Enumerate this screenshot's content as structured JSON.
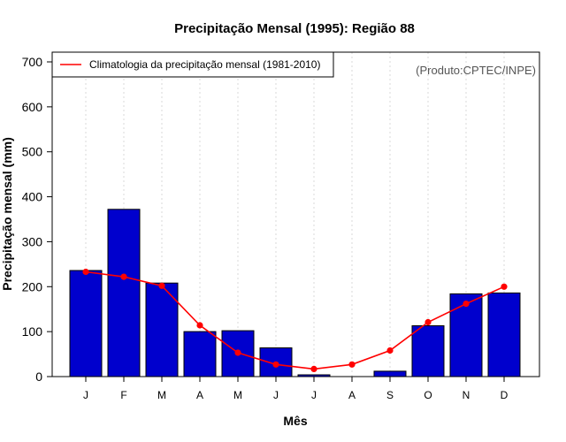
{
  "chart_data": {
    "type": "bar",
    "title": "Precipitação Mensal (1995): Região 88",
    "xlabel": "Mês",
    "ylabel": "Precipitação mensal (mm)",
    "ylim": [
      0,
      700
    ],
    "yticks": [
      0,
      100,
      200,
      300,
      400,
      500,
      600,
      700
    ],
    "grid": "vertical-dotted",
    "categories": [
      "J",
      "F",
      "M",
      "A",
      "M",
      "J",
      "J",
      "A",
      "S",
      "O",
      "N",
      "D"
    ],
    "series": [
      {
        "name": "Precipitação mensal (1995)",
        "type": "bar",
        "color": "#0000cd",
        "values": [
          236,
          372,
          208,
          100,
          102,
          64,
          4,
          0,
          12,
          113,
          184,
          186
        ]
      },
      {
        "name": "Climatologia da precipitação mensal (1981-2010)",
        "type": "line",
        "color": "#ff0000",
        "values": [
          233,
          222,
          202,
          114,
          53,
          27,
          17,
          27,
          58,
          121,
          162,
          200
        ]
      }
    ],
    "legend": {
      "position": "top-left",
      "entries": [
        "Climatologia da precipitação mensal (1981-2010)"
      ]
    },
    "annotation": "(Produto:CPTEC/INPE)"
  }
}
